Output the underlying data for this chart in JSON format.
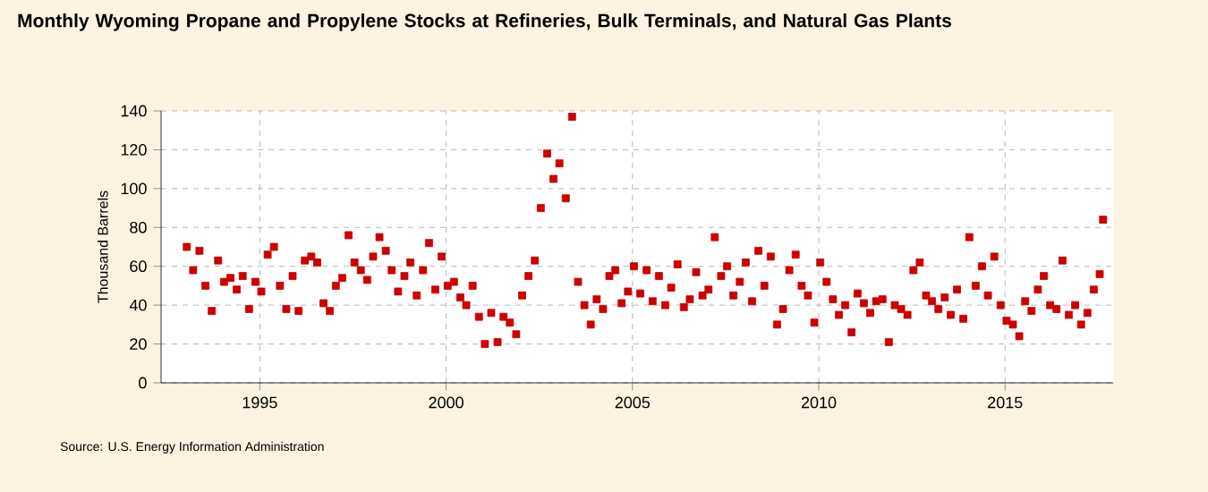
{
  "chart_data": {
    "type": "scatter",
    "title": "Monthly Wyoming Propane and Propylene Stocks at Refineries, Bulk Terminals, and Natural Gas Plants",
    "ylabel": "Thousand Barrels",
    "annotations": [
      "Source: U.S. Energy Information Administration"
    ],
    "x": [
      1993.04,
      1993.21,
      1993.38,
      1993.54,
      1993.71,
      1993.88,
      1994.04,
      1994.21,
      1994.38,
      1994.54,
      1994.71,
      1994.88,
      1995.04,
      1995.21,
      1995.38,
      1995.54,
      1995.71,
      1995.88,
      1996.04,
      1996.21,
      1996.38,
      1996.54,
      1996.71,
      1996.88,
      1997.04,
      1997.21,
      1997.38,
      1997.54,
      1997.71,
      1997.88,
      1998.04,
      1998.21,
      1998.38,
      1998.54,
      1998.71,
      1998.88,
      1999.04,
      1999.21,
      1999.38,
      1999.54,
      1999.71,
      1999.88,
      2000.04,
      2000.21,
      2000.38,
      2000.54,
      2000.71,
      2000.88,
      2001.04,
      2001.21,
      2001.38,
      2001.54,
      2001.71,
      2001.88,
      2002.04,
      2002.21,
      2002.38,
      2002.54,
      2002.71,
      2002.88,
      2003.04,
      2003.21,
      2003.38,
      2003.54,
      2003.71,
      2003.88,
      2004.04,
      2004.21,
      2004.38,
      2004.54,
      2004.71,
      2004.88,
      2005.04,
      2005.21,
      2005.38,
      2005.54,
      2005.71,
      2005.88,
      2006.04,
      2006.21,
      2006.38,
      2006.54,
      2006.71,
      2006.88,
      2007.04,
      2007.21,
      2007.38,
      2007.54,
      2007.71,
      2007.88,
      2008.04,
      2008.21,
      2008.38,
      2008.54,
      2008.71,
      2008.88,
      2009.04,
      2009.21,
      2009.38,
      2009.54,
      2009.71,
      2009.88,
      2010.04,
      2010.21,
      2010.38,
      2010.54,
      2010.71,
      2010.88,
      2011.04,
      2011.21,
      2011.38,
      2011.54,
      2011.71,
      2011.88,
      2012.04,
      2012.21,
      2012.38,
      2012.54,
      2012.71,
      2012.88,
      2013.04,
      2013.21,
      2013.38,
      2013.54,
      2013.71,
      2013.88,
      2014.04,
      2014.21,
      2014.38,
      2014.54,
      2014.71,
      2014.88,
      2015.04,
      2015.21,
      2015.38,
      2015.54,
      2015.71,
      2015.88,
      2016.04,
      2016.21,
      2016.38,
      2016.54,
      2016.71,
      2016.88,
      2017.04,
      2017.21,
      2017.38,
      2017.54,
      2017.63
    ],
    "values": [
      70,
      58,
      68,
      50,
      37,
      63,
      52,
      54,
      48,
      55,
      38,
      52,
      47,
      66,
      70,
      50,
      38,
      55,
      37,
      63,
      65,
      62,
      41,
      37,
      50,
      54,
      76,
      62,
      58,
      53,
      65,
      75,
      68,
      58,
      47,
      55,
      62,
      45,
      58,
      72,
      48,
      65,
      50,
      52,
      44,
      40,
      50,
      34,
      20,
      36,
      21,
      34,
      31,
      25,
      45,
      55,
      63,
      90,
      118,
      105,
      113,
      95,
      137,
      52,
      40,
      30,
      43,
      38,
      55,
      58,
      41,
      47,
      60,
      46,
      58,
      42,
      55,
      40,
      49,
      61,
      39,
      43,
      57,
      45,
      48,
      75,
      55,
      60,
      45,
      52,
      62,
      42,
      68,
      50,
      65,
      30,
      38,
      58,
      66,
      50,
      45,
      31,
      62,
      52,
      43,
      35,
      40,
      26,
      46,
      41,
      36,
      42,
      43,
      21,
      40,
      38,
      35,
      58,
      62,
      45,
      42,
      38,
      44,
      35,
      48,
      33,
      75,
      50,
      60,
      45,
      65,
      40,
      32,
      30,
      24,
      42,
      37,
      48,
      55,
      40,
      38,
      63,
      35,
      40,
      30,
      36,
      48,
      56,
      84
    ],
    "color": "#cc0000",
    "marker": "square",
    "xlim": [
      1992.35,
      2017.9
    ],
    "ylim": [
      0,
      140
    ],
    "xticks": [
      1995,
      2000,
      2005,
      2010,
      2015
    ],
    "yticks": [
      0,
      20,
      40,
      60,
      80,
      100,
      120,
      140
    ],
    "grid": true
  }
}
